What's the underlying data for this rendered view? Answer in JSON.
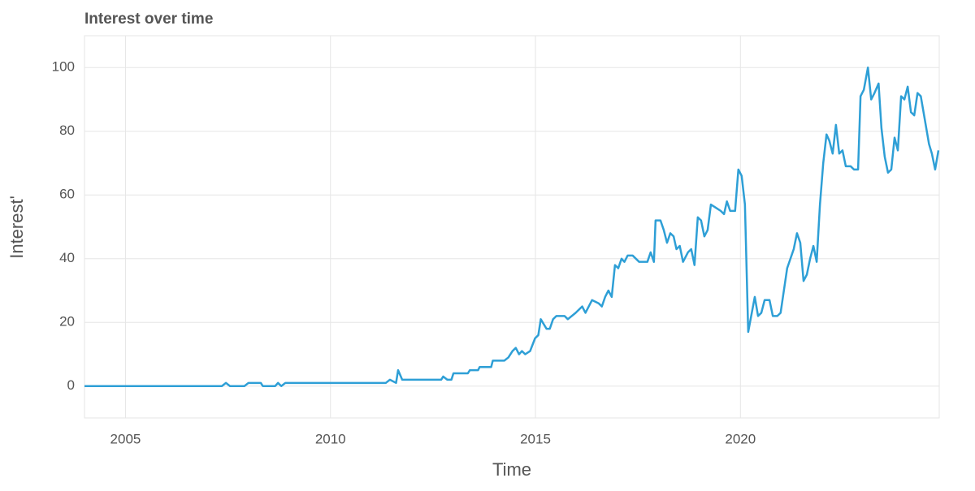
{
  "chart_data": {
    "type": "line",
    "title": "Interest over time",
    "x_label": "Time",
    "y_label": "Interest'",
    "xlim": [
      2004,
      2024.85
    ],
    "xticks": [
      2005,
      2010,
      2015,
      2020
    ],
    "ylim": [
      -10,
      110
    ],
    "yticks": [
      0,
      20,
      40,
      60,
      80,
      100
    ],
    "grid": true,
    "series": [
      {
        "name": "Interest",
        "color": "#2e9fd6",
        "x": [
          2004.0,
          2007.35,
          2007.45,
          2007.55,
          2007.9,
          2008.0,
          2008.3,
          2008.35,
          2008.65,
          2008.72,
          2008.8,
          2008.9,
          2011.35,
          2011.45,
          2011.6,
          2011.65,
          2011.75,
          2012.7,
          2012.75,
          2012.85,
          2012.95,
          2013.0,
          2013.35,
          2013.4,
          2013.6,
          2013.64,
          2013.92,
          2013.96,
          2014.24,
          2014.34,
          2014.44,
          2014.52,
          2014.6,
          2014.67,
          2014.75,
          2014.87,
          2014.99,
          2015.07,
          2015.13,
          2015.27,
          2015.35,
          2015.43,
          2015.51,
          2015.71,
          2015.79,
          2015.98,
          2016.14,
          2016.22,
          2016.38,
          2016.54,
          2016.62,
          2016.7,
          2016.78,
          2016.86,
          2016.94,
          2017.02,
          2017.1,
          2017.17,
          2017.25,
          2017.37,
          2017.53,
          2017.73,
          2017.81,
          2017.89,
          2017.93,
          2018.05,
          2018.13,
          2018.21,
          2018.29,
          2018.37,
          2018.44,
          2018.52,
          2018.6,
          2018.72,
          2018.8,
          2018.88,
          2018.96,
          2019.04,
          2019.12,
          2019.2,
          2019.28,
          2019.4,
          2019.52,
          2019.6,
          2019.67,
          2019.75,
          2019.87,
          2019.95,
          2020.03,
          2020.11,
          2020.19,
          2020.35,
          2020.43,
          2020.51,
          2020.59,
          2020.71,
          2020.79,
          2020.9,
          2020.98,
          2021.06,
          2021.14,
          2021.22,
          2021.3,
          2021.38,
          2021.46,
          2021.54,
          2021.62,
          2021.7,
          2021.78,
          2021.86,
          2021.94,
          2022.02,
          2022.1,
          2022.17,
          2022.25,
          2022.33,
          2022.41,
          2022.49,
          2022.57,
          2022.69,
          2022.77,
          2022.87,
          2022.93,
          2023.01,
          2023.11,
          2023.19,
          2023.27,
          2023.37,
          2023.44,
          2023.52,
          2023.6,
          2023.68,
          2023.76,
          2023.84,
          2023.92,
          2024.0,
          2024.08,
          2024.16,
          2024.24,
          2024.32,
          2024.4,
          2024.48,
          2024.6,
          2024.67,
          2024.75,
          2024.83
        ],
        "values": [
          0,
          0,
          1,
          0,
          0,
          1,
          1,
          0,
          0,
          1,
          0,
          1,
          1,
          2,
          1,
          5,
          2,
          2,
          3,
          2,
          2,
          4,
          4,
          5,
          5,
          6,
          6,
          8,
          8,
          9,
          11,
          12,
          10,
          11,
          10,
          11,
          15,
          16,
          21,
          18,
          18,
          21,
          22,
          22,
          21,
          23,
          25,
          23,
          27,
          26,
          25,
          28,
          30,
          28,
          38,
          37,
          40,
          39,
          41,
          41,
          39,
          39,
          42,
          39,
          52,
          52,
          49,
          45,
          48,
          47,
          43,
          44,
          39,
          42,
          43,
          38,
          53,
          52,
          47,
          49,
          57,
          56,
          55,
          54,
          58,
          55,
          55,
          68,
          66,
          57,
          17,
          28,
          22,
          23,
          27,
          27,
          22,
          22,
          23,
          30,
          37,
          40,
          43,
          48,
          45,
          33,
          35,
          40,
          44,
          39,
          57,
          70,
          79,
          77,
          73,
          82,
          73,
          74,
          69,
          69,
          68,
          68,
          91,
          93,
          100,
          90,
          92,
          95,
          81,
          72,
          67,
          68,
          78,
          74,
          91,
          90,
          94,
          86,
          85,
          92,
          91,
          85,
          76,
          73,
          68,
          74
        ]
      }
    ]
  }
}
